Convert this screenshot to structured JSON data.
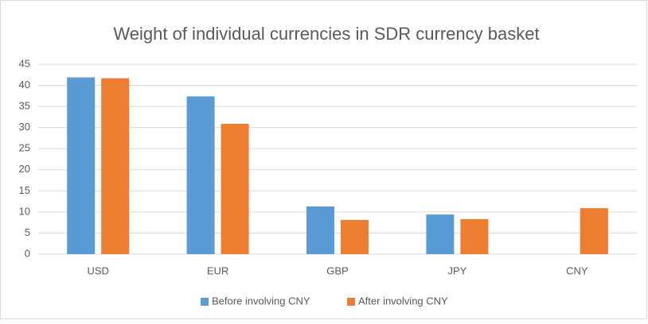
{
  "chart_data": {
    "type": "bar",
    "title": "Weight of individual currencies in SDR currency basket",
    "categories": [
      "USD",
      "EUR",
      "GBP",
      "JPY",
      "CNY"
    ],
    "series": [
      {
        "name": "Before involving CNY",
        "color": "#5b9bd5",
        "values": [
          41.9,
          37.4,
          11.3,
          9.4,
          null
        ]
      },
      {
        "name": "After involving CNY",
        "color": "#ed7d31",
        "values": [
          41.7,
          30.9,
          8.1,
          8.3,
          10.9
        ]
      }
    ],
    "ylim": [
      0,
      45
    ],
    "yticks": [
      0,
      5,
      10,
      15,
      20,
      25,
      30,
      35,
      40,
      45
    ],
    "grid": true,
    "legend": "bottom"
  }
}
